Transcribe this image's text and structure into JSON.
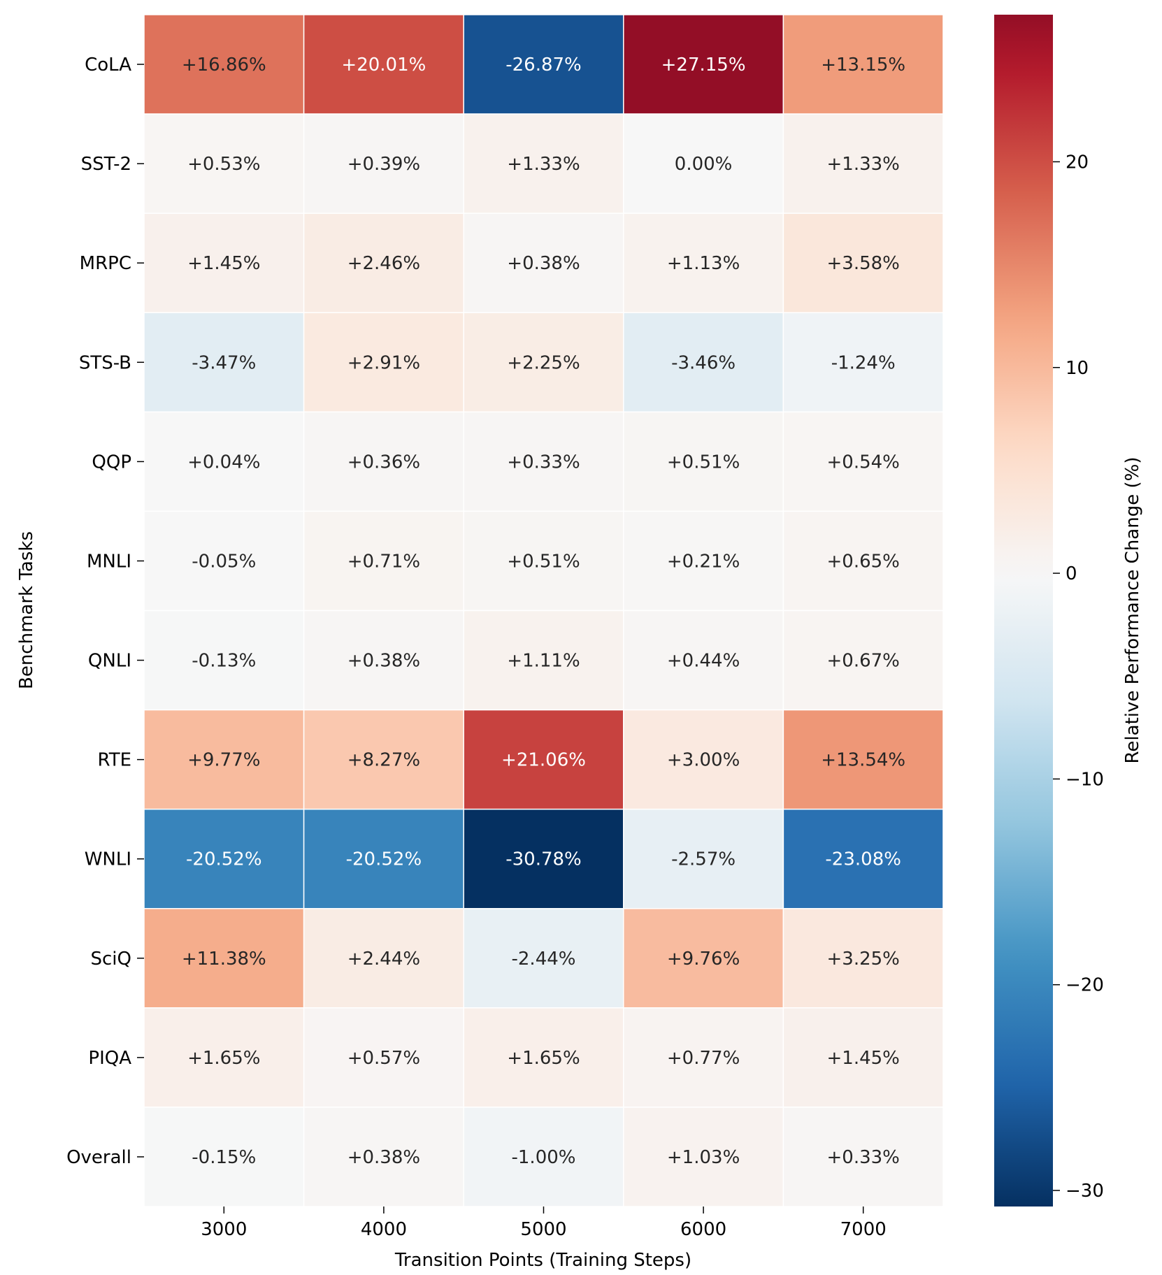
{
  "chart_data": {
    "type": "heatmap",
    "title": "",
    "xlabel": "Transition Points (Training Steps)",
    "ylabel": "Benchmark Tasks",
    "colorbar_label": "Relative Performance Change (%)",
    "colormap": "RdBu_r",
    "vmin": -30.78,
    "vmax": 27.15,
    "colorbar_ticks": [
      20,
      10,
      0,
      -10,
      -20,
      -30
    ],
    "colorbar_tick_labels": [
      "20",
      "10",
      "0",
      "−10",
      "−20",
      "−30"
    ],
    "x": [
      "3000",
      "4000",
      "5000",
      "6000",
      "7000"
    ],
    "y": [
      "CoLA",
      "SST-2",
      "MRPC",
      "STS-B",
      "QQP",
      "MNLI",
      "QNLI",
      "RTE",
      "WNLI",
      "SciQ",
      "PIQA",
      "Overall"
    ],
    "values": [
      [
        16.86,
        20.01,
        -26.87,
        27.15,
        13.15
      ],
      [
        0.53,
        0.39,
        1.33,
        0.0,
        1.33
      ],
      [
        1.45,
        2.46,
        0.38,
        1.13,
        3.58
      ],
      [
        -3.47,
        2.91,
        2.25,
        -3.46,
        -1.24
      ],
      [
        0.04,
        0.36,
        0.33,
        0.51,
        0.54
      ],
      [
        -0.05,
        0.71,
        0.51,
        0.21,
        0.65
      ],
      [
        -0.13,
        0.38,
        1.11,
        0.44,
        0.67
      ],
      [
        9.77,
        8.27,
        21.06,
        3.0,
        13.54
      ],
      [
        -20.52,
        -20.52,
        -30.78,
        -2.57,
        -23.08
      ],
      [
        11.38,
        2.44,
        -2.44,
        9.76,
        3.25
      ],
      [
        1.65,
        0.57,
        1.65,
        0.77,
        1.45
      ],
      [
        -0.15,
        0.38,
        -1.0,
        1.03,
        0.33
      ]
    ],
    "labels": [
      [
        "+16.86%",
        "+20.01%",
        "-26.87%",
        "+27.15%",
        "+13.15%"
      ],
      [
        "+0.53%",
        "+0.39%",
        "+1.33%",
        "0.00%",
        "+1.33%"
      ],
      [
        "+1.45%",
        "+2.46%",
        "+0.38%",
        "+1.13%",
        "+3.58%"
      ],
      [
        "-3.47%",
        "+2.91%",
        "+2.25%",
        "-3.46%",
        "-1.24%"
      ],
      [
        "+0.04%",
        "+0.36%",
        "+0.33%",
        "+0.51%",
        "+0.54%"
      ],
      [
        "-0.05%",
        "+0.71%",
        "+0.51%",
        "+0.21%",
        "+0.65%"
      ],
      [
        "-0.13%",
        "+0.38%",
        "+1.11%",
        "+0.44%",
        "+0.67%"
      ],
      [
        "+9.77%",
        "+8.27%",
        "+21.06%",
        "+3.00%",
        "+13.54%"
      ],
      [
        "-20.52%",
        "-20.52%",
        "-30.78%",
        "-2.57%",
        "-23.08%"
      ],
      [
        "+11.38%",
        "+2.44%",
        "-2.44%",
        "+9.76%",
        "+3.25%"
      ],
      [
        "+1.65%",
        "+0.57%",
        "+1.65%",
        "+0.77%",
        "+1.45%"
      ],
      [
        "-0.15%",
        "+0.38%",
        "-1.00%",
        "+1.03%",
        "+0.33%"
      ]
    ]
  }
}
